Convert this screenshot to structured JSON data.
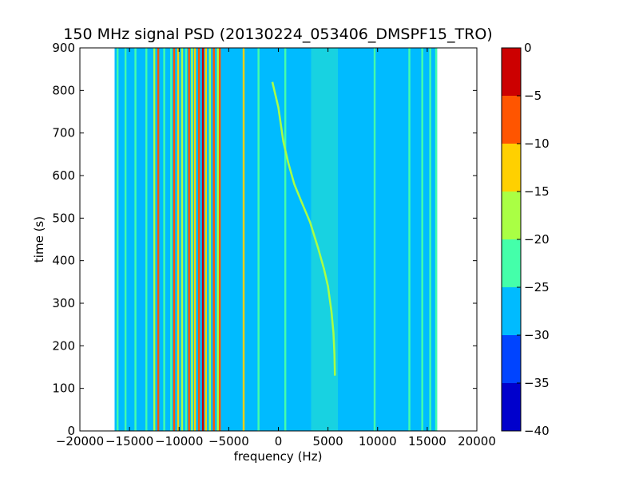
{
  "chart_data": {
    "type": "heatmap",
    "title": "150 MHz signal PSD (20130224_053406_DMSPF15_TRO)",
    "xlabel": "frequency (Hz)",
    "ylabel": "time (s)",
    "xlim": [
      -20000,
      20000
    ],
    "ylim": [
      0,
      900
    ],
    "xticks": [
      -20000,
      -15000,
      -10000,
      -5000,
      0,
      5000,
      10000,
      15000,
      20000
    ],
    "yticks": [
      0,
      100,
      200,
      300,
      400,
      500,
      600,
      700,
      800,
      900
    ],
    "data_extent": {
      "x": [
        -16500,
        16000
      ],
      "y": [
        0,
        900
      ]
    },
    "background_level": -27.5,
    "colorbar": {
      "levels": [
        -40,
        -35,
        -30,
        -25,
        -20,
        -15,
        -10,
        -5,
        0
      ],
      "tick_labels": [
        "-40",
        "-35",
        "-30",
        "-25",
        "-20",
        "-15",
        "-10",
        "-5",
        "0"
      ],
      "colors": [
        "#0000cc",
        "#0044ff",
        "#00bbff",
        "#44ffaa",
        "#aaff44",
        "#ffd000",
        "#ff5500",
        "#cc0000"
      ]
    },
    "carrier_lines": [
      {
        "freq": -16200,
        "level": -22.5
      },
      {
        "freq": -15400,
        "level": -22.5
      },
      {
        "freq": -14400,
        "level": -22.5
      },
      {
        "freq": -13300,
        "level": -22.5
      },
      {
        "freq": -12500,
        "level": -17.5
      },
      {
        "freq": -12100,
        "level": -7.5
      },
      {
        "freq": -11500,
        "level": -22.5
      },
      {
        "freq": -10800,
        "level": -22.5
      },
      {
        "freq": -10500,
        "level": -7.5
      },
      {
        "freq": -10100,
        "level": -12.5
      },
      {
        "freq": -9700,
        "level": -17.5
      },
      {
        "freq": -9300,
        "level": -22.5
      },
      {
        "freq": -9000,
        "level": -7.5
      },
      {
        "freq": -8700,
        "level": -17.5
      },
      {
        "freq": -8400,
        "level": -12.5
      },
      {
        "freq": -8000,
        "level": -7.5
      },
      {
        "freq": -7600,
        "level": -2.5
      },
      {
        "freq": -7300,
        "level": -12.5
      },
      {
        "freq": -6900,
        "level": -17.5
      },
      {
        "freq": -6500,
        "level": -7.5
      },
      {
        "freq": -6100,
        "level": -17.5
      },
      {
        "freq": -5900,
        "level": -7.5
      },
      {
        "freq": -3500,
        "level": -12.5
      },
      {
        "freq": -2000,
        "level": -22.5
      },
      {
        "freq": 700,
        "level": -22.5
      },
      {
        "freq": 9700,
        "level": -22.5
      },
      {
        "freq": 13200,
        "level": -22.5
      },
      {
        "freq": 14500,
        "level": -22.5
      },
      {
        "freq": 15300,
        "level": -22.5
      },
      {
        "freq": 15900,
        "level": -22.5
      }
    ],
    "noise_band": {
      "x": [
        3300,
        6000
      ],
      "level": -22.5
    },
    "doppler_trace": {
      "level": -17.5,
      "points": [
        [
          5700,
          130
        ],
        [
          5650,
          180
        ],
        [
          5550,
          230
        ],
        [
          5350,
          280
        ],
        [
          5000,
          340
        ],
        [
          4600,
          380
        ],
        [
          4000,
          430
        ],
        [
          3200,
          490
        ],
        [
          2300,
          540
        ],
        [
          1600,
          580
        ],
        [
          1000,
          630
        ],
        [
          500,
          680
        ],
        [
          0,
          760
        ],
        [
          -600,
          820
        ]
      ]
    }
  }
}
